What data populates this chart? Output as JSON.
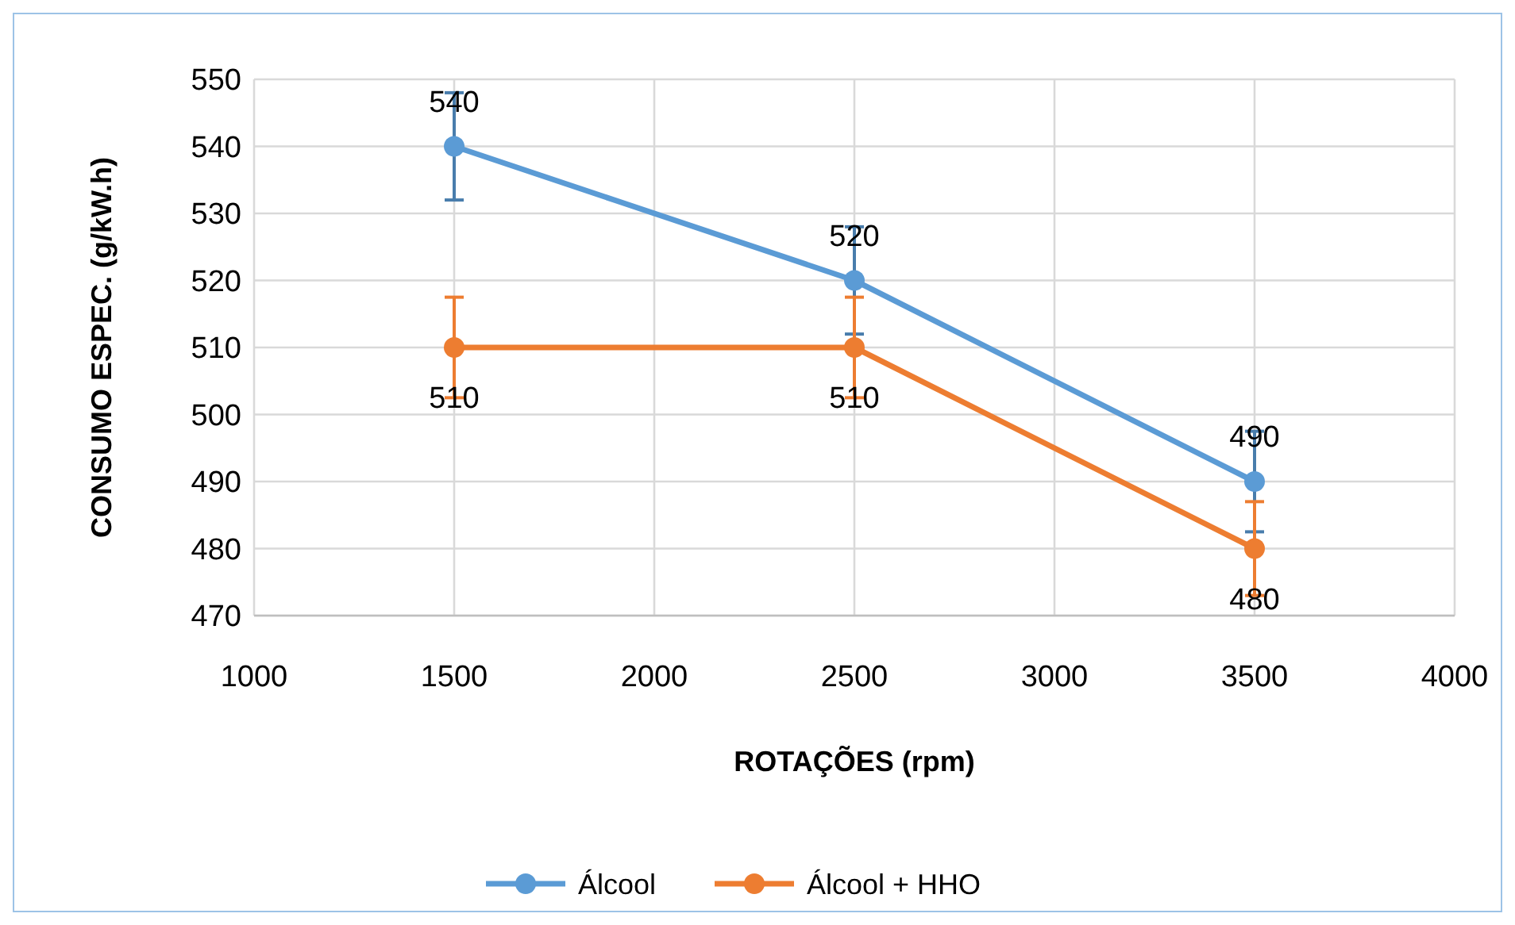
{
  "chart_data": {
    "type": "line",
    "xlabel": "ROTAÇÕES (rpm)",
    "ylabel": "CONSUMO ESPEC. (g/kW.h)",
    "x": [
      1500,
      2500,
      3500
    ],
    "series": [
      {
        "name": "Álcool",
        "color": "#5b9bd5",
        "values": [
          540,
          520,
          490
        ],
        "errors": [
          8,
          8,
          7.5
        ]
      },
      {
        "name": "Álcool + HHO",
        "color": "#ed7d31",
        "values": [
          510,
          510,
          480
        ],
        "errors": [
          7.5,
          7.5,
          7
        ]
      }
    ],
    "xlim": [
      1000,
      4000
    ],
    "xticks": [
      1000,
      1500,
      2000,
      2500,
      3000,
      3500,
      4000
    ],
    "ylim": [
      470,
      550
    ],
    "yticks": [
      470,
      480,
      490,
      500,
      510,
      520,
      530,
      540,
      550
    ],
    "grid": true,
    "legend": "bottom",
    "marker": "circle",
    "line_style": "solid",
    "data_labels": true
  }
}
